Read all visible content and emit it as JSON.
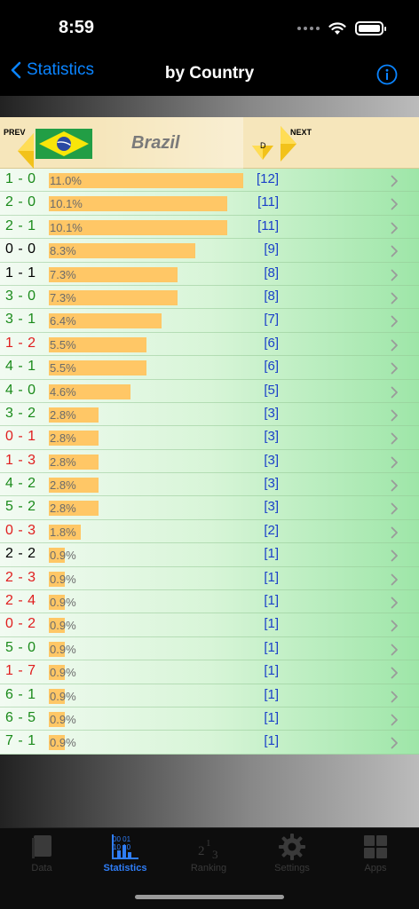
{
  "status": {
    "time": "8:59"
  },
  "nav": {
    "back_label": "Statistics",
    "title": "by Country"
  },
  "header": {
    "prev_label": "PREV",
    "next_label": "NEXT",
    "country": "Brazil",
    "sort_letter": "D"
  },
  "colors": {
    "win": "#1a8a1a",
    "draw": "#000000",
    "loss": "#e01e1e",
    "bar": "#ffc766",
    "count": "#1a3fc9",
    "accent": "#0a84ff"
  },
  "results": [
    {
      "score": "1 - 0",
      "outcome": "win",
      "pct": "11.0%",
      "value": 11.0,
      "count": "[12]"
    },
    {
      "score": "2 - 0",
      "outcome": "win",
      "pct": "10.1%",
      "value": 10.1,
      "count": "[11]"
    },
    {
      "score": "2 - 1",
      "outcome": "win",
      "pct": "10.1%",
      "value": 10.1,
      "count": "[11]"
    },
    {
      "score": "0 - 0",
      "outcome": "draw",
      "pct": "8.3%",
      "value": 8.3,
      "count": "[9]"
    },
    {
      "score": "1 - 1",
      "outcome": "draw",
      "pct": "7.3%",
      "value": 7.3,
      "count": "[8]"
    },
    {
      "score": "3 - 0",
      "outcome": "win",
      "pct": "7.3%",
      "value": 7.3,
      "count": "[8]"
    },
    {
      "score": "3 - 1",
      "outcome": "win",
      "pct": "6.4%",
      "value": 6.4,
      "count": "[7]"
    },
    {
      "score": "1 - 2",
      "outcome": "loss",
      "pct": "5.5%",
      "value": 5.5,
      "count": "[6]"
    },
    {
      "score": "4 - 1",
      "outcome": "win",
      "pct": "5.5%",
      "value": 5.5,
      "count": "[6]"
    },
    {
      "score": "4 - 0",
      "outcome": "win",
      "pct": "4.6%",
      "value": 4.6,
      "count": "[5]"
    },
    {
      "score": "3 - 2",
      "outcome": "win",
      "pct": "2.8%",
      "value": 2.8,
      "count": "[3]"
    },
    {
      "score": "0 - 1",
      "outcome": "loss",
      "pct": "2.8%",
      "value": 2.8,
      "count": "[3]"
    },
    {
      "score": "1 - 3",
      "outcome": "loss",
      "pct": "2.8%",
      "value": 2.8,
      "count": "[3]"
    },
    {
      "score": "4 - 2",
      "outcome": "win",
      "pct": "2.8%",
      "value": 2.8,
      "count": "[3]"
    },
    {
      "score": "5 - 2",
      "outcome": "win",
      "pct": "2.8%",
      "value": 2.8,
      "count": "[3]"
    },
    {
      "score": "0 - 3",
      "outcome": "loss",
      "pct": "1.8%",
      "value": 1.8,
      "count": "[2]"
    },
    {
      "score": "2 - 2",
      "outcome": "draw",
      "pct": "0.9%",
      "value": 0.9,
      "count": "[1]"
    },
    {
      "score": "2 - 3",
      "outcome": "loss",
      "pct": "0.9%",
      "value": 0.9,
      "count": "[1]"
    },
    {
      "score": "2 - 4",
      "outcome": "loss",
      "pct": "0.9%",
      "value": 0.9,
      "count": "[1]"
    },
    {
      "score": "0 - 2",
      "outcome": "loss",
      "pct": "0.9%",
      "value": 0.9,
      "count": "[1]"
    },
    {
      "score": "5 - 0",
      "outcome": "win",
      "pct": "0.9%",
      "value": 0.9,
      "count": "[1]"
    },
    {
      "score": "1 - 7",
      "outcome": "loss",
      "pct": "0.9%",
      "value": 0.9,
      "count": "[1]"
    },
    {
      "score": "6 - 1",
      "outcome": "win",
      "pct": "0.9%",
      "value": 0.9,
      "count": "[1]"
    },
    {
      "score": "6 - 5",
      "outcome": "win",
      "pct": "0.9%",
      "value": 0.9,
      "count": "[1]"
    },
    {
      "score": "7 - 1",
      "outcome": "win",
      "pct": "0.9%",
      "value": 0.9,
      "count": "[1]"
    }
  ],
  "tabs": [
    {
      "label": "Data",
      "icon": "book-icon",
      "active": false
    },
    {
      "label": "Statistics",
      "icon": "statistics-chart-icon",
      "active": true
    },
    {
      "label": "Ranking",
      "icon": "ranking-icon",
      "active": false
    },
    {
      "label": "Settings",
      "icon": "gear-icon",
      "active": false
    },
    {
      "label": "Apps",
      "icon": "apps-grid-icon",
      "active": false
    }
  ]
}
